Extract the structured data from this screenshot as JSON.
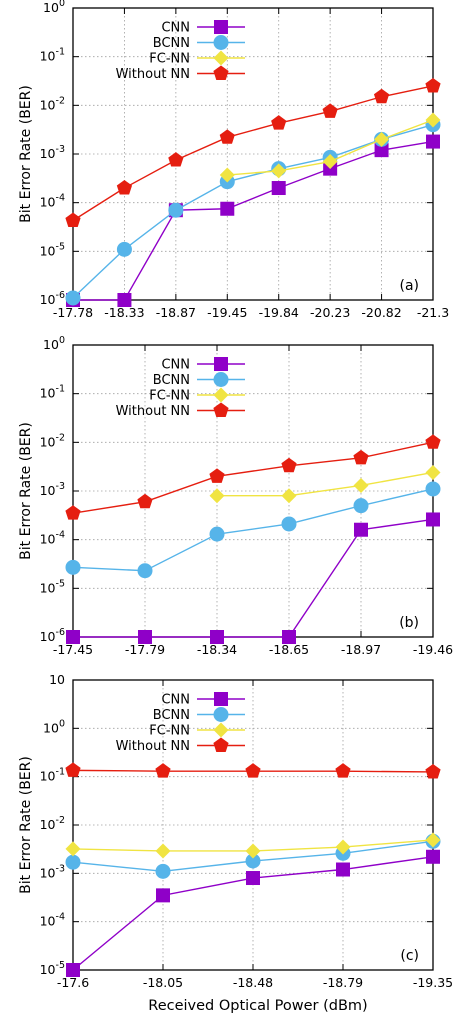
{
  "xlabel": "Received Optical Power (dBm)",
  "chart_data": [
    {
      "type": "line",
      "panel_label": "(a)",
      "ylabel": "Bit Error Rate (BER)",
      "yscale": "log",
      "ylim": [
        1e-06,
        1
      ],
      "categories": [
        "-17.78",
        "-18.33",
        "-18.87",
        "-19.45",
        "-19.84",
        "-20.23",
        "-20.82",
        "-21.3"
      ],
      "yticks": [
        {
          "m": "10",
          "e": "-6"
        },
        {
          "m": "10",
          "e": "-5"
        },
        {
          "m": "10",
          "e": "-4"
        },
        {
          "m": "10",
          "e": "-3"
        },
        {
          "m": "10",
          "e": "-2"
        },
        {
          "m": "10",
          "e": "-1"
        },
        {
          "m": "10",
          "e": "0"
        }
      ],
      "grid": true,
      "legend_position": "top-left",
      "series": [
        {
          "name": "CNN",
          "color": "#8f00c8",
          "marker": "square",
          "values": [
            1e-06,
            1e-06,
            7e-05,
            7.5e-05,
            0.0002,
            0.0005,
            0.0012,
            0.0018
          ]
        },
        {
          "name": "BCNN",
          "color": "#56b4e9",
          "marker": "circle",
          "values": [
            1.1e-06,
            1.1e-05,
            7e-05,
            0.00027,
            0.0005,
            0.00085,
            0.002,
            0.004
          ]
        },
        {
          "name": "FC-NN",
          "color": "#f0e442",
          "marker": "diamond",
          "values": [
            null,
            null,
            null,
            0.00037,
            0.00045,
            0.0007,
            0.002,
            0.005
          ]
        },
        {
          "name": "Without NN",
          "color": "#e51e10",
          "marker": "pentagon",
          "values": [
            4.3e-05,
            0.0002,
            0.00075,
            0.0022,
            0.0043,
            0.0075,
            0.015,
            0.025
          ]
        }
      ]
    },
    {
      "type": "line",
      "panel_label": "(b)",
      "ylabel": "Bit Error Rate (BER)",
      "yscale": "log",
      "ylim": [
        1e-06,
        1
      ],
      "categories": [
        "-17.45",
        "-17.79",
        "-18.34",
        "-18.65",
        "-18.97",
        "-19.46"
      ],
      "yticks": [
        {
          "m": "10",
          "e": "-6"
        },
        {
          "m": "10",
          "e": "-5"
        },
        {
          "m": "10",
          "e": "-4"
        },
        {
          "m": "10",
          "e": "-3"
        },
        {
          "m": "10",
          "e": "-2"
        },
        {
          "m": "10",
          "e": "-1"
        },
        {
          "m": "10",
          "e": "0"
        }
      ],
      "grid": true,
      "legend_position": "top-left",
      "series": [
        {
          "name": "CNN",
          "color": "#8f00c8",
          "marker": "square",
          "values": [
            1e-06,
            1e-06,
            1e-06,
            1e-06,
            0.00016,
            0.00026
          ]
        },
        {
          "name": "BCNN",
          "color": "#56b4e9",
          "marker": "circle",
          "values": [
            2.7e-05,
            2.3e-05,
            0.00013,
            0.00021,
            0.0005,
            0.0011
          ]
        },
        {
          "name": "FC-NN",
          "color": "#f0e442",
          "marker": "diamond",
          "values": [
            null,
            null,
            0.0008,
            0.0008,
            0.0013,
            0.0024
          ]
        },
        {
          "name": "Without NN",
          "color": "#e51e10",
          "marker": "pentagon",
          "values": [
            0.00035,
            0.0006,
            0.002,
            0.0033,
            0.0048,
            0.01
          ]
        }
      ]
    },
    {
      "type": "line",
      "panel_label": "(c)",
      "ylabel": "Bit Error Rate (BER)",
      "yscale": "log",
      "ylim": [
        1e-05,
        10
      ],
      "categories": [
        "-17.6",
        "-18.05",
        "-18.48",
        "-18.79",
        "-19.35"
      ],
      "yticks": [
        {
          "m": "10",
          "e": "-5"
        },
        {
          "m": "10",
          "e": "-4"
        },
        {
          "m": "10",
          "e": "-3"
        },
        {
          "m": "10",
          "e": "-2"
        },
        {
          "m": "10",
          "e": "-1"
        },
        {
          "m": "10",
          "e": "0"
        },
        {
          "m": "10",
          "e": ""
        }
      ],
      "grid": true,
      "legend_position": "top-left",
      "series": [
        {
          "name": "CNN",
          "color": "#8f00c8",
          "marker": "square",
          "values": [
            1e-05,
            0.00035,
            0.0008,
            0.0012,
            0.0022
          ]
        },
        {
          "name": "BCNN",
          "color": "#56b4e9",
          "marker": "circle",
          "values": [
            0.0017,
            0.0011,
            0.0018,
            0.0026,
            0.0046
          ]
        },
        {
          "name": "FC-NN",
          "color": "#f0e442",
          "marker": "diamond",
          "values": [
            0.0032,
            0.0029,
            0.0029,
            0.0035,
            0.0049
          ]
        },
        {
          "name": "Without NN",
          "color": "#e51e10",
          "marker": "pentagon",
          "values": [
            0.135,
            0.13,
            0.13,
            0.13,
            0.125
          ]
        }
      ]
    }
  ]
}
